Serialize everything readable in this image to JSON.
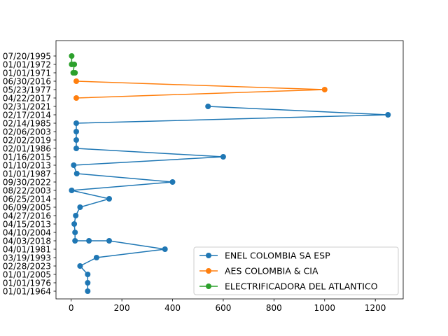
{
  "chart_data": {
    "type": "line",
    "orientation": "horizontal",
    "title": "",
    "xlabel": "",
    "ylabel": "",
    "xlim": [
      -60,
      1310
    ],
    "xticks": [
      0,
      200,
      400,
      600,
      800,
      1000,
      1200
    ],
    "grid": false,
    "legend_position": "lower-right",
    "categories": [
      "01/01/1964",
      "01/01/1976",
      "01/01/2005",
      "02/28/2023",
      "03/19/1993",
      "04/01/1981",
      "04/03/2018",
      "04/10/2004",
      "04/15/2013",
      "04/27/2016",
      "06/09/2005",
      "06/25/2014",
      "08/22/2003",
      "09/30/2022",
      "01/01/1987",
      "01/10/2013",
      "01/16/2015",
      "02/01/1986",
      "02/02/2019",
      "02/06/2003",
      "02/14/1985",
      "02/17/2014",
      "02/31/2021",
      "04/22/2017",
      "05/23/1977",
      "06/30/2016",
      "01/01/1971",
      "01/01/1972",
      "07/20/1995"
    ],
    "series": [
      {
        "name": "ENEL COLOMBIA SA ESP",
        "color": "#1f77b4",
        "points": [
          {
            "category": "01/01/1964",
            "value": 65
          },
          {
            "category": "01/01/1976",
            "value": 65
          },
          {
            "category": "01/01/2005",
            "value": 65
          },
          {
            "category": "02/28/2023",
            "value": 35
          },
          {
            "category": "03/19/1993",
            "value": 100
          },
          {
            "category": "04/01/1981",
            "value": 370
          },
          {
            "category": "04/03/2018",
            "value": 150
          },
          {
            "category": "04/03/2018",
            "value": 70
          },
          {
            "category": "04/03/2018",
            "value": 15
          },
          {
            "category": "04/10/2004",
            "value": 15
          },
          {
            "category": "04/15/2013",
            "value": 12
          },
          {
            "category": "04/27/2016",
            "value": 18
          },
          {
            "category": "06/09/2005",
            "value": 35
          },
          {
            "category": "06/25/2014",
            "value": 150
          },
          {
            "category": "08/22/2003",
            "value": 2
          },
          {
            "category": "09/30/2022",
            "value": 400
          },
          {
            "category": "01/01/1987",
            "value": 22
          },
          {
            "category": "01/10/2013",
            "value": 10
          },
          {
            "category": "01/16/2015",
            "value": 600
          },
          {
            "category": "02/01/1986",
            "value": 20
          },
          {
            "category": "02/02/2019",
            "value": 20
          },
          {
            "category": "02/06/2003",
            "value": 20
          },
          {
            "category": "02/14/1985",
            "value": 20
          },
          {
            "category": "02/17/2014",
            "value": 1250
          },
          {
            "category": "02/31/2021",
            "value": 540
          }
        ]
      },
      {
        "name": "AES COLOMBIA & CIA",
        "color": "#ff7f0e",
        "points": [
          {
            "category": "04/22/2017",
            "value": 20
          },
          {
            "category": "05/23/1977",
            "value": 1000
          },
          {
            "category": "06/30/2016",
            "value": 20
          }
        ]
      },
      {
        "name": "ELECTRIFICADORA DEL ATLANTICO",
        "color": "#2ca02c",
        "points": [
          {
            "category": "01/01/1971",
            "value": 15
          },
          {
            "category": "01/01/1971",
            "value": 8
          },
          {
            "category": "01/01/1972",
            "value": 12
          },
          {
            "category": "01/01/1972",
            "value": 2
          },
          {
            "category": "07/20/1995",
            "value": 2
          }
        ]
      }
    ]
  }
}
